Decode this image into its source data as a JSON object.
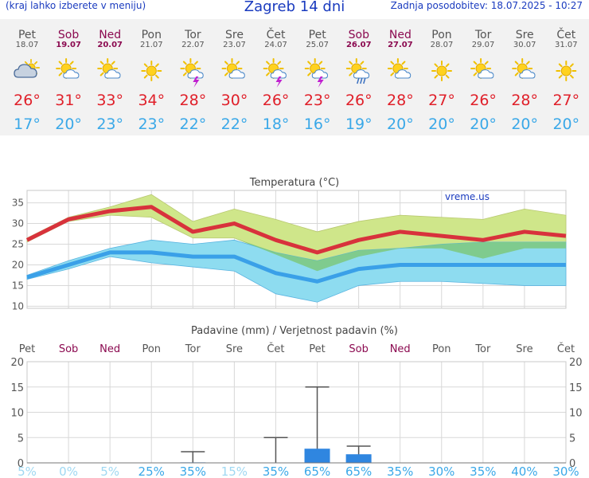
{
  "header": {
    "menu_hint": "(kraj lahko izberete v meniju)",
    "title": "Zagreb 14 dni",
    "last_update": "Zadnja posodobitev: 18.07.2025 - 10:27"
  },
  "forecast": {
    "days": [
      {
        "day": "Pet",
        "date": "18.07",
        "weekend": false,
        "icon": "partly-cloudy-icon",
        "high": "26°",
        "low": "17°"
      },
      {
        "day": "Sob",
        "date": "19.07",
        "weekend": true,
        "icon": "sun-cloud-icon",
        "high": "31°",
        "low": "20°"
      },
      {
        "day": "Ned",
        "date": "20.07",
        "weekend": true,
        "icon": "sun-cloud-icon",
        "high": "33°",
        "low": "23°"
      },
      {
        "day": "Pon",
        "date": "21.07",
        "weekend": false,
        "icon": "sun-icon",
        "high": "34°",
        "low": "23°"
      },
      {
        "day": "Tor",
        "date": "22.07",
        "weekend": false,
        "icon": "sun-thunderstorm-icon",
        "high": "28°",
        "low": "22°"
      },
      {
        "day": "Sre",
        "date": "23.07",
        "weekend": false,
        "icon": "sun-cloud-icon",
        "high": "30°",
        "low": "22°"
      },
      {
        "day": "Čet",
        "date": "24.07",
        "weekend": false,
        "icon": "sun-thunderstorm-icon",
        "high": "26°",
        "low": "18°"
      },
      {
        "day": "Pet",
        "date": "25.07",
        "weekend": false,
        "icon": "sun-thunderstorm-icon",
        "high": "23°",
        "low": "16°"
      },
      {
        "day": "Sob",
        "date": "26.07",
        "weekend": true,
        "icon": "sun-rain-icon",
        "high": "26°",
        "low": "19°"
      },
      {
        "day": "Ned",
        "date": "27.07",
        "weekend": true,
        "icon": "sun-cloud-icon",
        "high": "28°",
        "low": "20°"
      },
      {
        "day": "Pon",
        "date": "28.07",
        "weekend": false,
        "icon": "sun-icon",
        "high": "27°",
        "low": "20°"
      },
      {
        "day": "Tor",
        "date": "29.07",
        "weekend": false,
        "icon": "sun-cloud-icon",
        "high": "26°",
        "low": "20°"
      },
      {
        "day": "Sre",
        "date": "30.07",
        "weekend": false,
        "icon": "sun-cloud-icon",
        "high": "28°",
        "low": "20°"
      },
      {
        "day": "Čet",
        "date": "31.07",
        "weekend": false,
        "icon": "sun-icon",
        "high": "27°",
        "low": "20°"
      }
    ]
  },
  "colors": {
    "blue_text": "#1a3bbf",
    "weekend": "#8b0a50",
    "high_temp": "#e0202a",
    "low_temp": "#3aa8e8",
    "high_line": "#d8323c",
    "low_line": "#3aa0e8",
    "high_band": "#cfe68a",
    "low_band": "#8edcf0",
    "overlap_band": "#7cc87c",
    "precip_bar": "#2f86e0",
    "precip_prob": "#3aa8e8"
  },
  "chart_data": [
    {
      "type": "line",
      "title": "Temperatura (°C)",
      "watermark": "vreme.us",
      "categories": [
        "Pet",
        "Sob",
        "Ned",
        "Pon",
        "Tor",
        "Sre",
        "Čet",
        "Pet",
        "Sob",
        "Ned",
        "Pon",
        "Tor",
        "Sre",
        "Čet"
      ],
      "yticks": [
        10,
        15,
        20,
        25,
        30,
        35
      ],
      "ylim": [
        9.5,
        38
      ],
      "series": [
        {
          "role": "max",
          "values": [
            26,
            31,
            33,
            34,
            28,
            30,
            26,
            23,
            26,
            28,
            27,
            26,
            28,
            27
          ]
        },
        {
          "role": "min",
          "values": [
            17,
            20,
            23,
            23,
            22,
            22,
            18,
            16,
            19,
            20,
            20,
            20,
            20,
            20
          ]
        }
      ],
      "max_band_upper": [
        26.5,
        31.5,
        34,
        37,
        30.5,
        33.5,
        31,
        28,
        30.5,
        32,
        31.5,
        31,
        33.5,
        32
      ],
      "max_band_lower": [
        25.5,
        30.5,
        32,
        31.5,
        26.5,
        26.5,
        22.5,
        18.5,
        22,
        24,
        24,
        21.5,
        24,
        24
      ],
      "min_band_upper": [
        17.5,
        21,
        24,
        26,
        25,
        26,
        23,
        21,
        23.5,
        24,
        25,
        25.5,
        25.5,
        25.5
      ],
      "min_band_lower": [
        16.5,
        19,
        22,
        20.5,
        19.5,
        18.5,
        13,
        11,
        15,
        16,
        16,
        15.5,
        15,
        15
      ]
    },
    {
      "type": "bar",
      "title": "Padavine (mm) / Verjetnost padavin (%)",
      "categories": [
        "Pet",
        "Sob",
        "Ned",
        "Pon",
        "Tor",
        "Sre",
        "Čet",
        "Pet",
        "Sob",
        "Ned",
        "Pon",
        "Tor",
        "Sre",
        "Čet"
      ],
      "yticks": [
        0,
        5,
        10,
        15,
        20
      ],
      "ylim": [
        0,
        20
      ],
      "values": [
        0,
        0,
        0,
        0,
        0.1,
        0,
        0,
        2.8,
        1.7,
        0,
        0,
        0,
        0,
        0
      ],
      "range_high": [
        0,
        0,
        0,
        0,
        2.2,
        0,
        5,
        15,
        3.3,
        0,
        0,
        0,
        0,
        0
      ],
      "probability": [
        "5%",
        "0%",
        "5%",
        "25%",
        "35%",
        "15%",
        "35%",
        "65%",
        "65%",
        "35%",
        "30%",
        "35%",
        "40%",
        "30%"
      ]
    }
  ]
}
